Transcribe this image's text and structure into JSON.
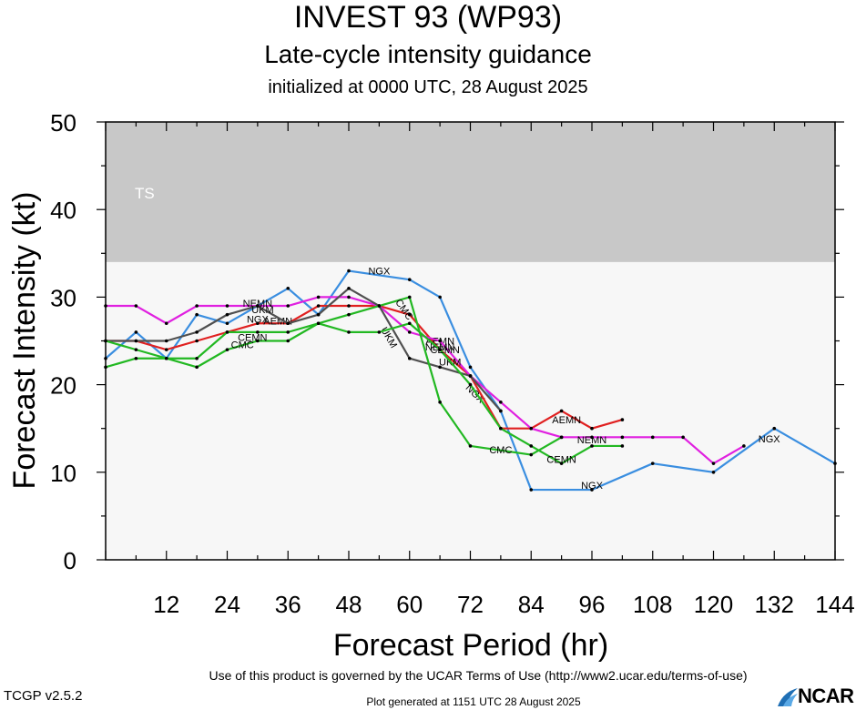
{
  "header": {
    "title": "INVEST 93 (WP93)",
    "subtitle": "Late-cycle intensity guidance",
    "init": "initialized at 0000 UTC, 28 August 2025"
  },
  "footer": {
    "terms": "Use of this product is governed by the UCAR Terms of Use (http://www2.ucar.edu/terms-of-use)",
    "version": "TCGP v2.5.2",
    "generated": "Plot generated at 1151 UTC   28 August 2025",
    "logo": "NCAR"
  },
  "colors": {
    "ts_band": "#c8c8c8",
    "td_band": "#f7f7f7"
  },
  "chart_data": {
    "type": "line",
    "xlabel": "Forecast Period (hr)",
    "ylabel": "Forecast Intensity (kt)",
    "xlim": [
      0,
      144
    ],
    "ylim": [
      0,
      50
    ],
    "xticks": [
      12,
      24,
      36,
      48,
      60,
      72,
      84,
      96,
      108,
      120,
      132,
      144
    ],
    "yticks": [
      0,
      10,
      20,
      30,
      40,
      50
    ],
    "grid": false,
    "bands": [
      {
        "label": "TS",
        "from": 34,
        "to": 50,
        "color": "#c8c8c8"
      },
      {
        "label": "",
        "from": 0,
        "to": 34,
        "color": "#f7f7f7"
      }
    ],
    "series": [
      {
        "name": "NGX",
        "color": "#3a8ee0",
        "points": [
          [
            0,
            23
          ],
          [
            6,
            26
          ],
          [
            12,
            23
          ],
          [
            18,
            28
          ],
          [
            24,
            27
          ],
          [
            30,
            29
          ],
          [
            36,
            31
          ],
          [
            42,
            28
          ],
          [
            48,
            33
          ],
          [
            60,
            32
          ],
          [
            66,
            30
          ],
          [
            72,
            22
          ],
          [
            78,
            17
          ],
          [
            84,
            8
          ],
          [
            96,
            8
          ],
          [
            108,
            11
          ],
          [
            120,
            10
          ],
          [
            132,
            15
          ],
          [
            144,
            11
          ]
        ],
        "labels": [
          [
            30,
            27.5
          ],
          [
            54,
            33
          ],
          [
            73,
            19
          ],
          [
            96,
            8.5
          ],
          [
            131,
            13.8
          ]
        ]
      },
      {
        "name": "AEMN",
        "color": "#e02020",
        "points": [
          [
            0,
            25
          ],
          [
            6,
            25
          ],
          [
            12,
            24
          ],
          [
            18,
            25
          ],
          [
            24,
            26
          ],
          [
            30,
            27
          ],
          [
            36,
            27
          ],
          [
            42,
            29
          ],
          [
            48,
            29
          ],
          [
            54,
            29
          ],
          [
            60,
            28
          ],
          [
            66,
            24
          ],
          [
            72,
            21
          ],
          [
            78,
            15
          ],
          [
            84,
            15
          ],
          [
            90,
            17
          ],
          [
            96,
            15
          ],
          [
            102,
            16
          ]
        ],
        "labels": [
          [
            34,
            27.3
          ],
          [
            66,
            25
          ],
          [
            91,
            16
          ]
        ]
      },
      {
        "name": "NEMN",
        "color": "#e020e0",
        "points": [
          [
            0,
            29
          ],
          [
            6,
            29
          ],
          [
            12,
            27
          ],
          [
            18,
            29
          ],
          [
            24,
            29
          ],
          [
            30,
            29
          ],
          [
            36,
            29
          ],
          [
            42,
            30
          ],
          [
            48,
            30
          ],
          [
            54,
            29
          ],
          [
            60,
            26
          ],
          [
            66,
            25
          ],
          [
            72,
            21
          ],
          [
            78,
            18
          ],
          [
            84,
            15
          ],
          [
            90,
            14
          ],
          [
            96,
            14
          ],
          [
            102,
            14
          ],
          [
            108,
            14
          ],
          [
            114,
            14
          ],
          [
            120,
            11
          ],
          [
            126,
            13
          ]
        ],
        "labels": [
          [
            30,
            29.3
          ],
          [
            66,
            24.3
          ],
          [
            96,
            13.7
          ]
        ]
      },
      {
        "name": "UKM",
        "color": "#505050",
        "points": [
          [
            0,
            25
          ],
          [
            6,
            25
          ],
          [
            12,
            25
          ],
          [
            18,
            26
          ],
          [
            24,
            28
          ],
          [
            30,
            29
          ],
          [
            36,
            27
          ],
          [
            42,
            28
          ],
          [
            48,
            31
          ],
          [
            54,
            29
          ],
          [
            60,
            23
          ],
          [
            66,
            22
          ],
          [
            72,
            21
          ],
          [
            78,
            17
          ]
        ],
        "labels": [
          [
            31,
            28.6
          ],
          [
            56,
            25.4
          ],
          [
            68,
            22.6
          ]
        ]
      },
      {
        "name": "CMC",
        "color": "#22b822",
        "points": [
          [
            0,
            22
          ],
          [
            6,
            23
          ],
          [
            12,
            23
          ],
          [
            18,
            22
          ],
          [
            24,
            24
          ],
          [
            30,
            25
          ],
          [
            36,
            25
          ],
          [
            42,
            27
          ],
          [
            48,
            28
          ],
          [
            54,
            29
          ],
          [
            60,
            30
          ],
          [
            66,
            18
          ],
          [
            72,
            13
          ],
          [
            84,
            12
          ],
          [
            90,
            14
          ]
        ],
        "labels": [
          [
            27,
            24.6
          ],
          [
            59,
            28.6
          ],
          [
            78,
            12.6
          ]
        ]
      },
      {
        "name": "CEMN",
        "color": "#22b822",
        "points": [
          [
            0,
            25
          ],
          [
            6,
            24
          ],
          [
            12,
            23
          ],
          [
            18,
            23
          ],
          [
            24,
            26
          ],
          [
            30,
            26
          ],
          [
            36,
            26
          ],
          [
            42,
            27
          ],
          [
            48,
            26
          ],
          [
            54,
            26
          ],
          [
            60,
            27
          ],
          [
            66,
            24
          ],
          [
            72,
            20
          ],
          [
            78,
            15
          ],
          [
            84,
            13
          ],
          [
            90,
            11
          ],
          [
            96,
            13
          ],
          [
            102,
            13
          ]
        ],
        "labels": [
          [
            29,
            25.4
          ],
          [
            67,
            24
          ],
          [
            90,
            11.5
          ]
        ]
      }
    ]
  }
}
